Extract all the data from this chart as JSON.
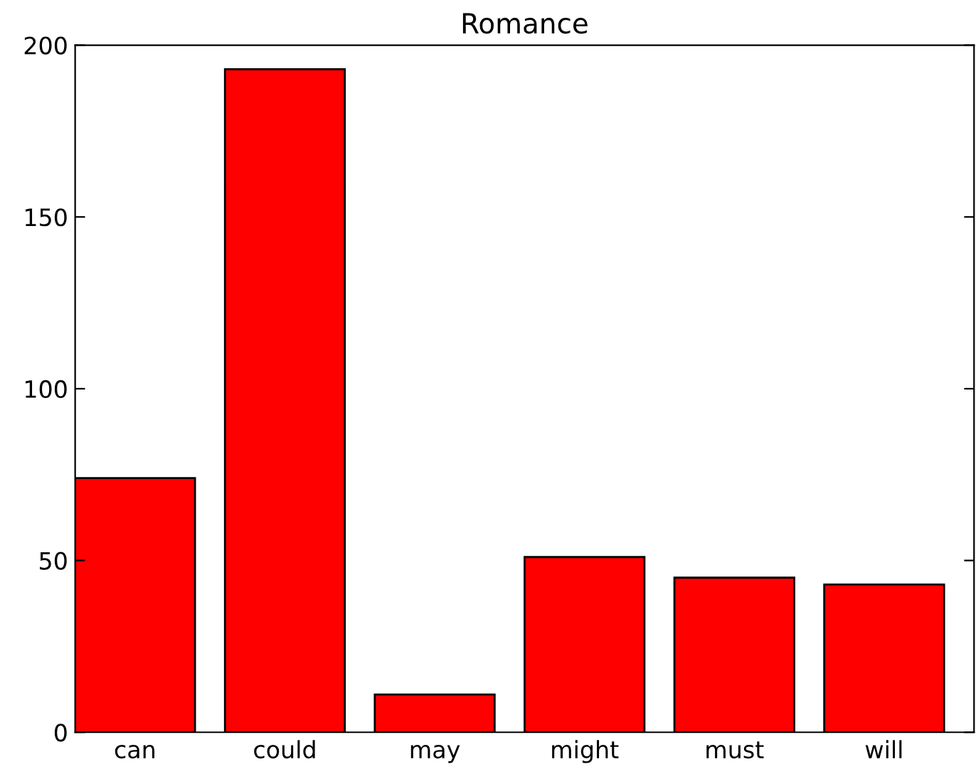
{
  "chart_data": {
    "type": "bar",
    "title": "Romance",
    "categories": [
      "can",
      "could",
      "may",
      "might",
      "must",
      "will"
    ],
    "values": [
      74,
      193,
      11,
      51,
      45,
      43
    ],
    "color": "#ff0000",
    "ylim": [
      0,
      200
    ],
    "yticks": [
      0,
      50,
      100,
      150,
      200
    ],
    "grid": false,
    "legend": false
  }
}
